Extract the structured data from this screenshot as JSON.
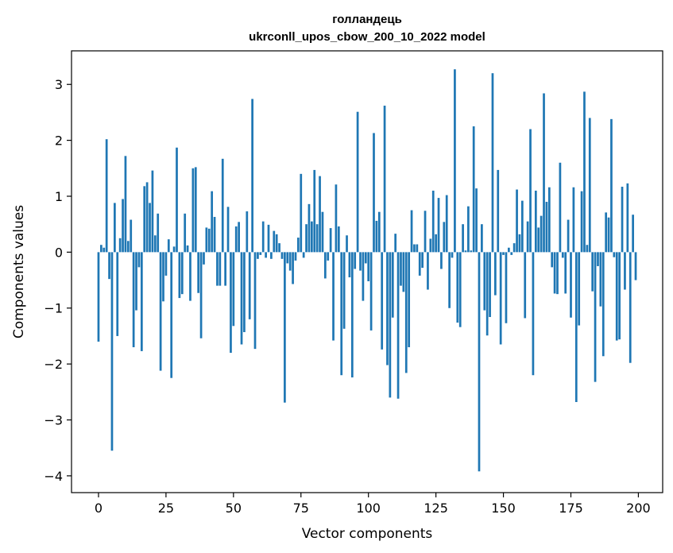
{
  "chart_data": {
    "type": "bar",
    "title": "голландець",
    "subtitle": "ukrconll_upos_cbow_200_10_2022 model",
    "xlabel": "Vector components",
    "ylabel": "Components values",
    "xlim": [
      -10,
      209
    ],
    "ylim": [
      -4.3,
      3.6
    ],
    "xticks": [
      0,
      25,
      50,
      75,
      100,
      125,
      150,
      175,
      200
    ],
    "yticks": [
      -4,
      -3,
      -2,
      -1,
      0,
      1,
      2,
      3
    ],
    "grid": false,
    "bar_color": "#1f77b4",
    "x": [
      0,
      1,
      2,
      3,
      4,
      5,
      6,
      7,
      8,
      9,
      10,
      11,
      12,
      13,
      14,
      15,
      16,
      17,
      18,
      19,
      20,
      21,
      22,
      23,
      24,
      25,
      26,
      27,
      28,
      29,
      30,
      31,
      32,
      33,
      34,
      35,
      36,
      37,
      38,
      39,
      40,
      41,
      42,
      43,
      44,
      45,
      46,
      47,
      48,
      49,
      50,
      51,
      52,
      53,
      54,
      55,
      56,
      57,
      58,
      59,
      60,
      61,
      62,
      63,
      64,
      65,
      66,
      67,
      68,
      69,
      70,
      71,
      72,
      73,
      74,
      75,
      76,
      77,
      78,
      79,
      80,
      81,
      82,
      83,
      84,
      85,
      86,
      87,
      88,
      89,
      90,
      91,
      92,
      93,
      94,
      95,
      96,
      97,
      98,
      99,
      100,
      101,
      102,
      103,
      104,
      105,
      106,
      107,
      108,
      109,
      110,
      111,
      112,
      113,
      114,
      115,
      116,
      117,
      118,
      119,
      120,
      121,
      122,
      123,
      124,
      125,
      126,
      127,
      128,
      129,
      130,
      131,
      132,
      133,
      134,
      135,
      136,
      137,
      138,
      139,
      140,
      141,
      142,
      143,
      144,
      145,
      146,
      147,
      148,
      149,
      150,
      151,
      152,
      153,
      154,
      155,
      156,
      157,
      158,
      159,
      160,
      161,
      162,
      163,
      164,
      165,
      166,
      167,
      168,
      169,
      170,
      171,
      172,
      173,
      174,
      175,
      176,
      177,
      178,
      179,
      180,
      181,
      182,
      183,
      184,
      185,
      186,
      187,
      188,
      189,
      190,
      191,
      192,
      193,
      194,
      195,
      196,
      197,
      198,
      199
    ],
    "values": [
      -1.6,
      0.13,
      0.08,
      2.02,
      -0.48,
      -3.55,
      0.88,
      -1.5,
      0.25,
      0.95,
      1.72,
      0.2,
      0.58,
      -1.7,
      -1.04,
      -0.27,
      -1.77,
      1.18,
      1.25,
      0.88,
      1.46,
      0.3,
      0.69,
      -2.12,
      -0.88,
      -0.42,
      0.23,
      -2.25,
      0.1,
      1.87,
      -0.82,
      -0.75,
      0.69,
      0.12,
      -0.87,
      1.5,
      1.52,
      -0.73,
      -1.54,
      -0.22,
      0.44,
      0.42,
      1.09,
      0.63,
      -0.6,
      -0.6,
      1.67,
      -0.6,
      0.81,
      -1.8,
      -1.32,
      0.46,
      0.54,
      -1.65,
      -1.43,
      0.73,
      -1.2,
      2.74,
      -1.73,
      -0.12,
      -0.05,
      0.55,
      -0.1,
      0.49,
      -0.12,
      0.38,
      0.32,
      0.16,
      -0.12,
      -2.69,
      -0.2,
      -0.33,
      -0.57,
      -0.15,
      0.26,
      1.4,
      -0.1,
      0.5,
      0.86,
      0.55,
      1.47,
      0.5,
      1.36,
      0.72,
      -0.47,
      -0.15,
      0.43,
      -1.58,
      1.21,
      0.46,
      -2.2,
      -1.37,
      0.3,
      -0.45,
      -2.24,
      -0.3,
      2.51,
      -0.33,
      -0.87,
      -0.2,
      -0.52,
      -1.4,
      2.13,
      0.56,
      0.72,
      -1.74,
      2.62,
      -2.02,
      -2.6,
      -1.17,
      0.33,
      -2.62,
      -0.6,
      -0.71,
      -2.16,
      -1.7,
      0.75,
      0.14,
      0.14,
      -0.42,
      -0.28,
      0.74,
      -0.67,
      0.24,
      1.1,
      0.32,
      0.97,
      -0.3,
      0.54,
      1.02,
      -1.0,
      -0.1,
      3.27,
      -1.26,
      -1.34,
      0.5,
      0.03,
      0.82,
      0.03,
      2.25,
      1.14,
      -3.92,
      0.5,
      -1.04,
      -1.49,
      -1.16,
      3.2,
      -0.77,
      1.47,
      -1.65,
      -0.05,
      -1.27,
      0.08,
      -0.05,
      0.16,
      1.12,
      0.32,
      0.92,
      -1.18,
      0.55,
      2.2,
      -2.2,
      1.1,
      0.44,
      0.65,
      2.84,
      0.9,
      1.16,
      -0.27,
      -0.74,
      -0.75,
      1.6,
      -0.1,
      -0.74,
      0.58,
      -1.17,
      1.16,
      -2.68,
      -1.31,
      1.09,
      2.87,
      0.13,
      2.4,
      -0.7,
      -2.32,
      -0.25,
      -0.97,
      -1.86,
      0.71,
      0.62,
      2.38,
      -0.09,
      -1.58,
      -1.56,
      1.17,
      -0.67,
      1.23,
      -1.98,
      0.67,
      -0.5
    ]
  }
}
